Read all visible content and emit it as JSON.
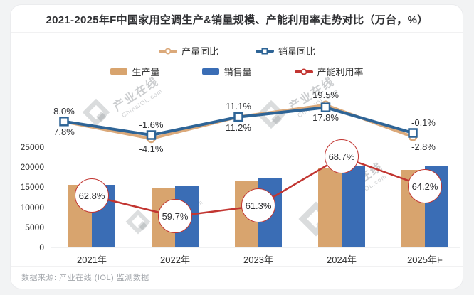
{
  "title": "2021-2025年F中国家用空调生产&销量规模、产能利用率走势对比（万台，%）",
  "footer": {
    "source": "数据来源: 产业在线 (IOL) 监测数据"
  },
  "watermark": {
    "cn": "产业在线",
    "en": "ChinaIOL.com"
  },
  "colors": {
    "production": "#D8A46E",
    "sales": "#3A6DB5",
    "production_yoy_line": "#DBA97A",
    "sales_yoy_line": "#2E6496",
    "utilization": "#C23531",
    "text": "#2F3033",
    "footer_text": "#A2A6AB"
  },
  "legend": {
    "row1": [
      {
        "label": "产量同比"
      },
      {
        "label": "销量同比"
      }
    ],
    "row2": [
      {
        "label": "生产量"
      },
      {
        "label": "销售量"
      },
      {
        "label": "产能利用率"
      }
    ]
  },
  "chart_data": {
    "type": "bar+line combo",
    "unit": "万台, %",
    "categories": [
      "2021年",
      "2022年",
      "2023年",
      "2024年",
      "2025年F"
    ],
    "series": [
      {
        "name": "生产量",
        "type": "bar",
        "color": "#D8A46E",
        "values": [
          15590,
          14950,
          16620,
          19860,
          19310
        ]
      },
      {
        "name": "销售量",
        "type": "bar",
        "color": "#3A6DB5",
        "values": [
          15650,
          15400,
          17110,
          20160,
          20140
        ]
      },
      {
        "name": "产量同比",
        "type": "line",
        "marker": "circle",
        "color": "#DBA97A",
        "values": [
          7.8,
          -4.1,
          11.2,
          19.5,
          -2.8
        ],
        "labels": [
          "7.8%",
          "-4.1%",
          "11.2%",
          "19.5%",
          "-2.8%"
        ]
      },
      {
        "name": "销量同比",
        "type": "line",
        "marker": "square",
        "color": "#2E6496",
        "values": [
          8.0,
          -1.6,
          11.1,
          17.8,
          -0.1
        ],
        "labels": [
          "8.0%",
          "-1.6%",
          "11.1%",
          "17.8%",
          "-0.1%"
        ]
      },
      {
        "name": "产能利用率",
        "type": "line",
        "marker": "circled-label",
        "color": "#C23531",
        "values": [
          62.8,
          59.7,
          61.3,
          68.7,
          64.2
        ],
        "labels": [
          "62.8%",
          "59.7%",
          "61.3%",
          "68.7%",
          "64.2%"
        ]
      }
    ],
    "yoy_label_layout": [
      {
        "top": "8.0%",
        "bottom": "7.8%"
      },
      {
        "top": "-1.6%",
        "bottom": "-4.1%"
      },
      {
        "top": "11.1%",
        "bottom": "11.2%"
      },
      {
        "top": "19.5%",
        "bottom": "17.8%"
      },
      {
        "top": "-0.1%",
        "bottom": "-2.8%"
      }
    ],
    "y_axis": {
      "ticks": [
        0,
        5000,
        10000,
        15000,
        20000,
        25000
      ],
      "min": 0,
      "max": 25000
    },
    "grid": false,
    "legend_position": "top"
  }
}
